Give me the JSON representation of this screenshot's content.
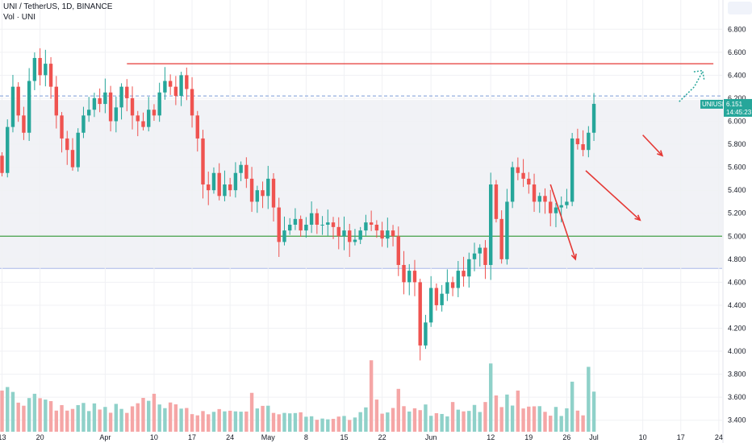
{
  "header": {
    "symbol_line": "UNI / TetherUS, 1D, BINANCE",
    "volume_line": "Vol · UNI"
  },
  "colors": {
    "up": "#26a69a",
    "down": "#ef5350",
    "up_volume": "#8fd1c9",
    "down_volume": "#f5a6a6",
    "resistance": "#e53935",
    "support": "#43a047",
    "dashed": "#7a9ad8",
    "band_fill": "#f1f2f6",
    "band_edge": "#aab8e8",
    "price_label": "#26a69a"
  },
  "chart_data": {
    "type": "candlestick",
    "ylim": [
      3.3,
      6.97
    ],
    "y_ticks": [
      "6.800",
      "6.600",
      "6.400",
      "6.200",
      "6.000",
      "5.800",
      "5.600",
      "5.400",
      "5.200",
      "5.000",
      "4.800",
      "4.600",
      "4.400",
      "4.200",
      "4.000",
      "3.800",
      "3.600",
      "3.400"
    ],
    "y_tick_values": [
      6.8,
      6.6,
      6.4,
      6.2,
      6.0,
      5.8,
      5.6,
      5.4,
      5.2,
      5.0,
      4.8,
      4.6,
      4.4,
      4.2,
      4.0,
      3.8,
      3.6,
      3.4
    ],
    "x_ticks": [
      {
        "label": "13",
        "index": 0
      },
      {
        "label": "20",
        "index": 7
      },
      {
        "label": "Apr",
        "index": 19
      },
      {
        "label": "10",
        "index": 28
      },
      {
        "label": "17",
        "index": 35
      },
      {
        "label": "24",
        "index": 42
      },
      {
        "label": "May",
        "index": 49
      },
      {
        "label": "8",
        "index": 56
      },
      {
        "label": "15",
        "index": 63
      },
      {
        "label": "22",
        "index": 70
      },
      {
        "label": "Jun",
        "index": 79
      },
      {
        "label": "12",
        "index": 90
      },
      {
        "label": "19",
        "index": 97
      },
      {
        "label": "26",
        "index": 104
      },
      {
        "label": "Jul",
        "index": 109
      },
      {
        "label": "10",
        "index": 118
      },
      {
        "label": "17",
        "index": 125
      },
      {
        "label": "24",
        "index": 132
      }
    ],
    "closes": [
      5.55,
      5.95,
      6.3,
      6.05,
      5.9,
      6.35,
      6.55,
      6.4,
      6.5,
      6.3,
      6.05,
      5.85,
      5.75,
      5.6,
      5.9,
      6.05,
      6.1,
      6.2,
      6.15,
      6.25,
      6.0,
      6.12,
      6.3,
      6.2,
      6.05,
      6.0,
      5.95,
      6.1,
      6.05,
      6.25,
      6.35,
      6.3,
      6.22,
      6.4,
      6.28,
      6.05,
      5.85,
      5.45,
      5.4,
      5.55,
      5.35,
      5.45,
      5.4,
      5.55,
      5.62,
      5.5,
      5.3,
      5.4,
      5.35,
      5.5,
      5.25,
      4.95,
      5.05,
      5.1,
      5.15,
      5.05,
      5.1,
      5.2,
      5.1,
      5.1,
      5.12,
      5.08,
      5.0,
      5.05,
      4.95,
      4.97,
      5.05,
      5.12,
      5.1,
      5.05,
      4.98,
      5.05,
      5.0,
      4.75,
      4.6,
      4.7,
      4.6,
      4.05,
      4.25,
      4.55,
      4.4,
      4.5,
      4.6,
      4.55,
      4.7,
      4.65,
      4.8,
      4.85,
      4.9,
      4.75,
      5.45,
      5.15,
      4.8,
      5.3,
      5.6,
      5.55,
      5.5,
      5.45,
      5.3,
      5.35,
      5.3,
      5.2,
      5.25,
      5.27,
      5.3,
      5.85,
      5.8,
      5.75,
      5.9,
      6.151
    ],
    "volumes": [
      26.9,
      29.2,
      26.0,
      19.0,
      17.0,
      22.0,
      24.8,
      21.9,
      21.0,
      20.0,
      13.8,
      17.4,
      13.8,
      14.9,
      17.4,
      18.8,
      13.5,
      18.5,
      14.5,
      16.2,
      12.4,
      18.2,
      14.9,
      12.3,
      16.6,
      18.6,
      22.1,
      20.2,
      24.8,
      17.8,
      15.4,
      19.1,
      17.9,
      15.1,
      15.5,
      11.5,
      10.7,
      13.5,
      11.4,
      13.0,
      14.8,
      13.3,
      13.7,
      13.3,
      13.1,
      13.2,
      25.4,
      15.2,
      16.9,
      17.0,
      12.3,
      11.4,
      12.3,
      12.0,
      12.2,
      12.7,
      9.8,
      10.1,
      7.8,
      8.6,
      8.1,
      8.4,
      9.9,
      10.3,
      7.7,
      9.3,
      12.8,
      15.9,
      46.7,
      21.0,
      11.8,
      12.6,
      15.5,
      28.0,
      16.7,
      13.2,
      15.3,
      14.1,
      17.8,
      10.4,
      12.1,
      11.6,
      10.0,
      19.4,
      14.4,
      13.3,
      13.6,
      17.5,
      12.9,
      19.4,
      44.6,
      23.7,
      16.1,
      24.3,
      17.1,
      26.9,
      15.2,
      16.4,
      16.6,
      16.7,
      13.0,
      10.5,
      16.2,
      10.3,
      15.3,
      32.7,
      13.8,
      10.7,
      42.4,
      26.2
    ]
  }
}
